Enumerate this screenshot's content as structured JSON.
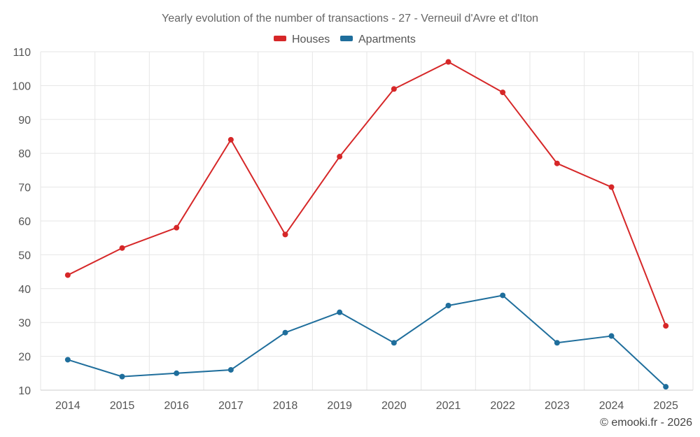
{
  "chart_data": {
    "type": "line",
    "title": "Yearly evolution of the number of transactions - 27 - Verneuil d'Avre et d'Iton",
    "x": [
      "2014",
      "2015",
      "2016",
      "2017",
      "2018",
      "2019",
      "2020",
      "2021",
      "2022",
      "2023",
      "2024",
      "2025"
    ],
    "series": [
      {
        "name": "Houses",
        "color": "#d62728",
        "values": [
          44,
          52,
          58,
          84,
          56,
          79,
          99,
          107,
          98,
          77,
          70,
          29
        ]
      },
      {
        "name": "Apartments",
        "color": "#1f6e9c",
        "values": [
          19,
          14,
          15,
          16,
          27,
          33,
          24,
          35,
          38,
          24,
          26,
          11
        ]
      }
    ],
    "yticks": [
      10,
      20,
      30,
      40,
      50,
      60,
      70,
      80,
      90,
      100,
      110
    ],
    "ylim": [
      10,
      110
    ],
    "grid": true,
    "legend": "top-center",
    "xlabel": "",
    "ylabel": ""
  },
  "credit": "© emooki.fr - 2026"
}
